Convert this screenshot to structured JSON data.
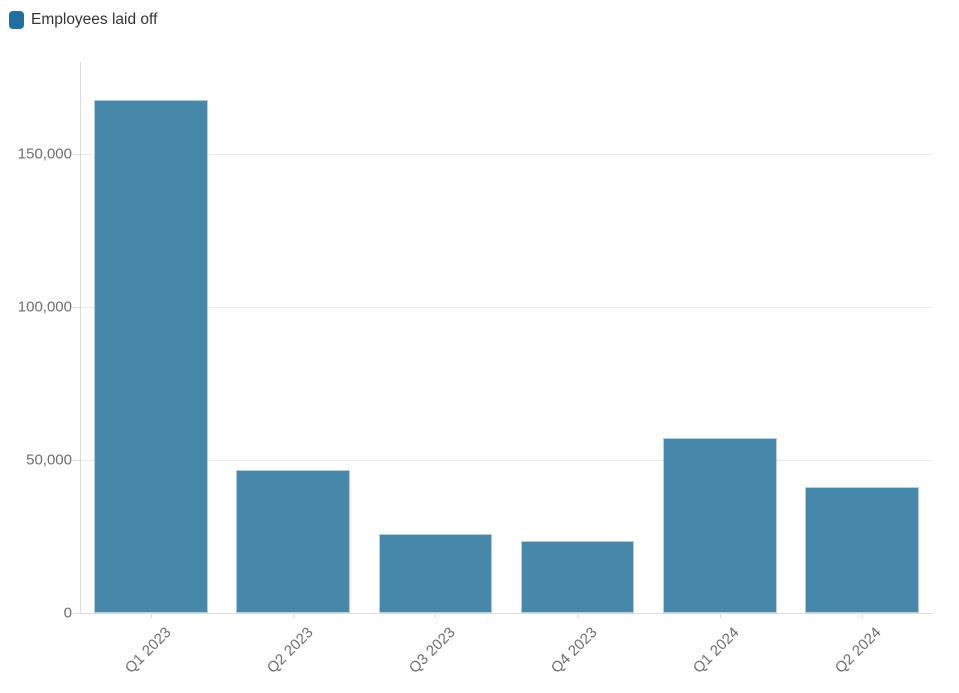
{
  "legend": {
    "label": "Employees laid off",
    "swatch_color": "#20709f"
  },
  "chart_data": {
    "type": "bar",
    "categories": [
      "Q1 2023",
      "Q2 2023",
      "Q3 2023",
      "Q4 2023",
      "Q1 2024",
      "Q2 2024"
    ],
    "series": [
      {
        "name": "Employees laid off",
        "color": "#4787a9",
        "values": [
          167600,
          46600,
          25800,
          23500,
          57100,
          41100
        ]
      }
    ],
    "xlabel": "",
    "ylabel": "",
    "ylim": [
      0,
      180000
    ],
    "yticks": [
      {
        "value": 0,
        "label": "0"
      },
      {
        "value": 50000,
        "label": "50,000"
      },
      {
        "value": 100000,
        "label": "100,000"
      },
      {
        "value": 150000,
        "label": "150,000"
      }
    ],
    "grid": true,
    "legend_position": "top-left",
    "x_tick_rotation": -45
  }
}
